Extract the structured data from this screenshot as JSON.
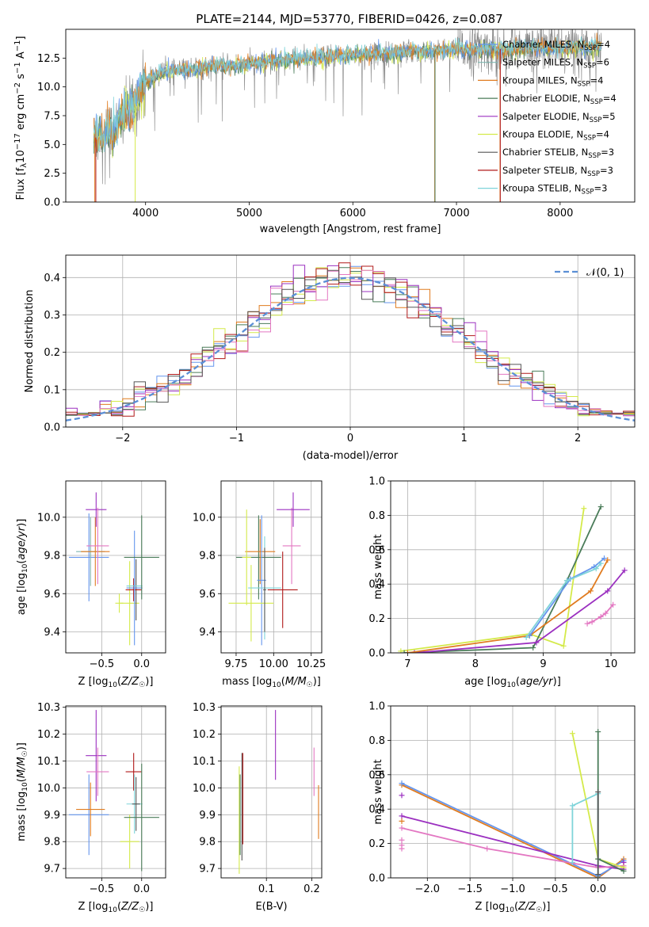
{
  "page": {
    "title": "PLATE=2144, MJD=53770, FIBERID=0426, z=0.087"
  },
  "colors": {
    "Chabrier MILES": "#6495ed",
    "Salpeter MILES": "#7fb6b0",
    "Kroupa MILES": "#e07b1f",
    "Chabrier ELODIE": "#4a7c59",
    "Salpeter ELODIE": "#9b30c0",
    "Kroupa ELODIE": "#d4ea4a",
    "Chabrier STELIB": "#555555",
    "Salpeter STELIB": "#b01818",
    "Kroupa STELIB": "#7fd4d9",
    "pink": "#e377c2",
    "normal": "#5b8fd6",
    "grid": "#b0b0b0"
  },
  "chart_data": [
    {
      "id": "spectrum",
      "type": "line",
      "xlabel": "wavelength [Angstrom, rest frame]",
      "ylabel": "Flux [f_λ10^-17 erg cm^-2 s^-1 A^-1]",
      "xlim": [
        3230,
        8720
      ],
      "ylim": [
        0,
        15
      ],
      "xticks": [
        4000,
        5000,
        6000,
        7000,
        8000
      ],
      "yticks": [
        0.0,
        2.5,
        5.0,
        7.5,
        10.0,
        12.5
      ],
      "ytick_labels": [
        "0.0",
        "2.5",
        "5.0",
        "7.5",
        "10.0",
        "12.5"
      ],
      "grid": false,
      "legend": "right",
      "legend_entries": [
        {
          "label": "Chabrier MILES, N",
          "sub": "SSP",
          "suffix": "=4",
          "color": "#6495ed"
        },
        {
          "label": "Salpeter MILES, N",
          "sub": "SSP",
          "suffix": "=6",
          "color": "#7fb6b0"
        },
        {
          "label": "Kroupa MILES, N",
          "sub": "SSP",
          "suffix": "=4",
          "color": "#e07b1f"
        },
        {
          "label": "Chabrier ELODIE, N",
          "sub": "SSP",
          "suffix": "=4",
          "color": "#4a7c59"
        },
        {
          "label": "Salpeter ELODIE, N",
          "sub": "SSP",
          "suffix": "=5",
          "color": "#9b30c0"
        },
        {
          "label": "Kroupa ELODIE, N",
          "sub": "SSP",
          "suffix": "=4",
          "color": "#d4ea4a"
        },
        {
          "label": "Chabrier STELIB, N",
          "sub": "SSP",
          "suffix": "=3",
          "color": "#555555"
        },
        {
          "label": "Salpeter STELIB, N",
          "sub": "SSP",
          "suffix": "=3",
          "color": "#b01818"
        },
        {
          "label": "Kroupa STELIB, N",
          "sub": "SSP",
          "suffix": "=3",
          "color": "#7fd4d9"
        }
      ],
      "continuum": {
        "x": [
          3500,
          3600,
          3700,
          3800,
          3900,
          4000,
          4100,
          4200,
          4300,
          4500,
          4700,
          5000,
          5300,
          5600,
          6000,
          6500,
          7000,
          7500,
          8000,
          8400
        ],
        "y": [
          5.5,
          6.0,
          6.5,
          7.5,
          8.5,
          10.5,
          11.0,
          11.3,
          11.4,
          11.6,
          11.8,
          12.0,
          12.3,
          12.5,
          12.8,
          13.0,
          13.2,
          13.3,
          13.4,
          13.5
        ]
      },
      "drops": [
        {
          "x": 3510,
          "color": "#e07b1f"
        },
        {
          "x": 3520,
          "color": "#b01818"
        },
        {
          "x": 3900,
          "color": "#d4ea4a"
        },
        {
          "x": 6790,
          "color": "#e07b1f"
        },
        {
          "x": 6793,
          "color": "#4a7c59"
        },
        {
          "x": 7420,
          "color": "#e07b1f"
        },
        {
          "x": 7423,
          "color": "#b01818"
        }
      ]
    },
    {
      "id": "residuals",
      "type": "line",
      "xlabel": "(data-model)/error",
      "ylabel": "Normed distribution",
      "xlim": [
        -2.5,
        2.5
      ],
      "ylim": [
        0,
        0.46
      ],
      "xticks": [
        -2,
        -1,
        0,
        1,
        2
      ],
      "xtick_labels": [
        "−2",
        "−1",
        "0",
        "1",
        "2"
      ],
      "yticks": [
        0.0,
        0.1,
        0.2,
        0.3,
        0.4
      ],
      "ytick_labels": [
        "0.0",
        "0.1",
        "0.2",
        "0.3",
        "0.4"
      ],
      "grid": true,
      "legend": "top-right",
      "normal_label": "𝒩(0, 1)",
      "bin_width": 0.1
    },
    {
      "id": "age_vs_Z",
      "type": "scatter",
      "xlabel": "Z [log10(Z/Z☉)]",
      "ylabel": "age  [log10(age/yr)]",
      "xlim": [
        -0.95,
        0.3
      ],
      "ylim": [
        9.29,
        10.19
      ],
      "xticks": [
        -0.5,
        0.0
      ],
      "xtick_labels": [
        "−0.5",
        "0.0"
      ],
      "yticks": [
        9.4,
        9.6,
        9.8,
        10.0
      ],
      "ytick_labels": [
        "9.4",
        "9.6",
        "9.8",
        "10.0"
      ],
      "grid": true,
      "points": [
        {
          "x": -0.66,
          "y": 9.79,
          "xerr": 0.25,
          "yerr": 0.23,
          "color": "#6495ed"
        },
        {
          "x": -0.64,
          "y": 9.82,
          "xerr": 0.18,
          "yerr": 0.18,
          "color": "#7fb6b0"
        },
        {
          "x": -0.58,
          "y": 9.82,
          "xerr": 0.18,
          "yerr": 0.18,
          "color": "#e07b1f"
        },
        {
          "x": -0.57,
          "y": 10.04,
          "xerr": 0.13,
          "yerr": 0.09,
          "color": "#9b30c0"
        },
        {
          "x": -0.55,
          "y": 9.85,
          "xerr": 0.14,
          "yerr": 0.2,
          "color": "#e377c2"
        },
        {
          "x": -0.15,
          "y": 9.55,
          "xerr": 0.12,
          "yerr": 0.22,
          "color": "#d4ea4a"
        },
        {
          "x": -0.28,
          "y": 9.55,
          "xerr": 0.05,
          "yerr": 0.05,
          "color": "#d4ea4a"
        },
        {
          "x": -0.07,
          "y": 9.62,
          "xerr": 0.05,
          "yerr": 0.16,
          "color": "#555555"
        },
        {
          "x": -0.1,
          "y": 9.62,
          "xerr": 0.1,
          "yerr": 0.06,
          "color": "#b01818"
        },
        {
          "x": -0.09,
          "y": 9.64,
          "xerr": 0.1,
          "yerr": 0.03,
          "color": "#7fd4d9"
        },
        {
          "x": -0.09,
          "y": 9.63,
          "xerr": 0.1,
          "yerr": 0.3,
          "color": "#6495ed"
        },
        {
          "x": 0.0,
          "y": 9.79,
          "xerr": 0.22,
          "yerr": 0.22,
          "color": "#4a7c59"
        }
      ]
    },
    {
      "id": "age_vs_mass",
      "type": "scatter",
      "xlabel": "mass [log10(M/M☉)]",
      "ylabel": "",
      "xlim": [
        9.65,
        10.32
      ],
      "ylim": [
        9.29,
        10.19
      ],
      "xticks": [
        9.75,
        10.0,
        10.25
      ],
      "xtick_labels": [
        "9.75",
        "10.00",
        "10.25"
      ],
      "yticks": [
        9.4,
        9.6,
        9.8,
        10.0
      ],
      "ytick_labels": [
        "9.4",
        "9.6",
        "9.8",
        "10.0"
      ],
      "grid": true,
      "points": [
        {
          "x": 9.9,
          "y": 9.79,
          "xerr": 0.15,
          "yerr": 0.22,
          "color": "#4a7c59"
        },
        {
          "x": 9.91,
          "y": 9.82,
          "xerr": 0.1,
          "yerr": 0.17,
          "color": "#e07b1f"
        },
        {
          "x": 9.92,
          "y": 9.67,
          "xerr": 0.03,
          "yerr": 0.34,
          "color": "#6495ed"
        },
        {
          "x": 9.82,
          "y": 9.79,
          "xerr": 0.03,
          "yerr": 0.25,
          "color": "#d4ea4a"
        },
        {
          "x": 9.85,
          "y": 9.55,
          "xerr": 0.15,
          "yerr": 0.2,
          "color": "#d4ea4a"
        },
        {
          "x": 9.94,
          "y": 9.63,
          "xerr": 0.11,
          "yerr": 0.27,
          "color": "#7fd4d9"
        },
        {
          "x": 9.94,
          "y": 9.62,
          "xerr": 0.01,
          "yerr": 0.22,
          "color": "#555555"
        },
        {
          "x": 10.06,
          "y": 9.62,
          "xerr": 0.1,
          "yerr": 0.2,
          "color": "#b01818"
        },
        {
          "x": 10.12,
          "y": 9.85,
          "xerr": 0.06,
          "yerr": 0.2,
          "color": "#e377c2"
        },
        {
          "x": 10.13,
          "y": 10.04,
          "xerr": 0.11,
          "yerr": 0.09,
          "color": "#9b30c0"
        }
      ]
    },
    {
      "id": "weight_vs_age",
      "type": "line",
      "xlabel": "age  [log10(age/yr)]",
      "ylabel": "mass weight",
      "xlim": [
        6.75,
        10.35
      ],
      "ylim": [
        0,
        1
      ],
      "xticks": [
        7,
        8,
        9,
        10
      ],
      "xtick_labels": [
        "7",
        "8",
        "9",
        "10"
      ],
      "yticks": [
        0.0,
        0.2,
        0.4,
        0.6,
        0.8,
        1.0
      ],
      "ytick_labels": [
        "0.0",
        "0.2",
        "0.4",
        "0.6",
        "0.8",
        "1.0"
      ],
      "grid": true,
      "series": [
        {
          "color": "#d4ea4a",
          "x": [
            6.9,
            8.8,
            9.3,
            9.6
          ],
          "y": [
            0.01,
            0.11,
            0.04,
            0.84
          ]
        },
        {
          "color": "#4a7c59",
          "x": [
            6.95,
            8.85,
            9.35,
            9.85
          ],
          "y": [
            0.0,
            0.03,
            0.42,
            0.85
          ]
        },
        {
          "color": "#9b30c0",
          "x": [
            7.1,
            8.9,
            9.95,
            10.2
          ],
          "y": [
            0.0,
            0.06,
            0.36,
            0.48
          ]
        },
        {
          "color": "#e07b1f",
          "x": [
            7.0,
            8.8,
            9.7,
            9.95
          ],
          "y": [
            0.0,
            0.1,
            0.36,
            0.54
          ]
        },
        {
          "color": "#6495ed",
          "x": [
            8.8,
            9.4,
            9.75,
            9.9
          ],
          "y": [
            0.1,
            0.43,
            0.5,
            0.55
          ]
        },
        {
          "color": "#7fd4d9",
          "x": [
            8.75,
            9.35,
            9.78,
            9.85
          ],
          "y": [
            0.09,
            0.42,
            0.49,
            0.52
          ]
        },
        {
          "color": "#e377c2",
          "x": [
            9.65,
            9.72,
            9.85,
            9.92,
            10.03
          ],
          "y": [
            0.17,
            0.18,
            0.21,
            0.23,
            0.28
          ]
        }
      ]
    },
    {
      "id": "mass_vs_Z",
      "type": "scatter",
      "xlabel": "Z [log10(Z/Z☉)]",
      "ylabel": "mass [log10(M/M☉)]",
      "xlim": [
        -0.95,
        0.3
      ],
      "ylim": [
        9.665,
        10.305
      ],
      "xticks": [
        -0.5,
        0.0
      ],
      "xtick_labels": [
        "−0.5",
        "0.0"
      ],
      "yticks": [
        9.7,
        9.8,
        9.9,
        10.0,
        10.1,
        10.2,
        10.3
      ],
      "ytick_labels": [
        "9.7",
        "9.8",
        "9.9",
        "10.0",
        "10.1",
        "10.2",
        "10.3"
      ],
      "grid": true,
      "points": [
        {
          "x": -0.66,
          "y": 9.9,
          "xerr": 0.25,
          "yerr": 0.15,
          "color": "#6495ed"
        },
        {
          "x": -0.64,
          "y": 9.92,
          "xerr": 0.18,
          "yerr": 0.1,
          "color": "#e07b1f"
        },
        {
          "x": -0.57,
          "y": 10.12,
          "xerr": 0.13,
          "yerr": 0.17,
          "color": "#9b30c0"
        },
        {
          "x": -0.55,
          "y": 10.06,
          "xerr": 0.14,
          "yerr": 0.09,
          "color": "#e377c2"
        },
        {
          "x": -0.15,
          "y": 9.8,
          "xerr": 0.12,
          "yerr": 0.1,
          "color": "#d4ea4a"
        },
        {
          "x": -0.1,
          "y": 10.06,
          "xerr": 0.1,
          "yerr": 0.07,
          "color": "#b01818"
        },
        {
          "x": -0.09,
          "y": 9.94,
          "xerr": 0.1,
          "yerr": 0.11,
          "color": "#7fd4d9"
        },
        {
          "x": -0.07,
          "y": 9.94,
          "xerr": 0.05,
          "yerr": 0.1,
          "color": "#555555"
        },
        {
          "x": 0.0,
          "y": 9.89,
          "xerr": 0.22,
          "yerr": 0.2,
          "color": "#4a7c59"
        }
      ]
    },
    {
      "id": "mass_vs_ebv",
      "type": "scatter",
      "xlabel": "E(B-V)",
      "ylabel": "",
      "xlim": [
        0.0,
        0.222
      ],
      "ylim": [
        9.665,
        10.305
      ],
      "xticks": [
        0.1,
        0.2
      ],
      "xtick_labels": [
        "0.1",
        "0.2"
      ],
      "yticks": [
        9.7,
        9.8,
        9.9,
        10.0,
        10.1,
        10.2,
        10.3
      ],
      "ytick_labels": [
        "9.7",
        "9.8",
        "9.9",
        "10.0",
        "10.1",
        "10.2",
        "10.3"
      ],
      "grid": true,
      "points": [
        {
          "x": 0.04,
          "y": 9.88,
          "xerr": 0.0,
          "yerr": 0.2,
          "color": "#d4ea4a"
        },
        {
          "x": 0.042,
          "y": 9.9,
          "xerr": 0.0,
          "yerr": 0.15,
          "color": "#4a7c59"
        },
        {
          "x": 0.046,
          "y": 9.93,
          "xerr": 0.0,
          "yerr": 0.2,
          "color": "#555555"
        },
        {
          "x": 0.048,
          "y": 9.96,
          "xerr": 0.0,
          "yerr": 0.17,
          "color": "#b01818"
        },
        {
          "x": 0.12,
          "y": 10.16,
          "xerr": 0.0,
          "yerr": 0.13,
          "color": "#9b30c0"
        },
        {
          "x": 0.205,
          "y": 10.06,
          "xerr": 0.0,
          "yerr": 0.09,
          "color": "#e377c2"
        },
        {
          "x": 0.215,
          "y": 9.91,
          "xerr": 0.0,
          "yerr": 0.1,
          "color": "#e07b1f"
        }
      ]
    },
    {
      "id": "weight_vs_Z",
      "type": "line",
      "xlabel": "Z [log10(Z/Z☉)]",
      "ylabel": "mass weight",
      "xlim": [
        -2.43,
        0.43
      ],
      "ylim": [
        0,
        1
      ],
      "xticks": [
        -2.0,
        -1.5,
        -1.0,
        -0.5,
        0.0
      ],
      "xtick_labels": [
        "−2.0",
        "−1.5",
        "−1.0",
        "−0.5",
        "0.0"
      ],
      "yticks": [
        0.0,
        0.2,
        0.4,
        0.6,
        0.8,
        1.0
      ],
      "ytick_labels": [
        "0.0",
        "0.2",
        "0.4",
        "0.6",
        "0.8",
        "1.0"
      ],
      "grid": true,
      "series": [
        {
          "color": "#e07b1f",
          "x": [
            -2.3,
            0.0,
            0.3
          ],
          "y": [
            0.54,
            0.0,
            0.11
          ]
        },
        {
          "color": "#6495ed",
          "x": [
            -2.3,
            0.0,
            0.3
          ],
          "y": [
            0.55,
            0.01,
            0.1
          ]
        },
        {
          "color": "#9b30c0",
          "x": [
            -2.3,
            0.0,
            0.3,
            0.3
          ],
          "y": [
            0.36,
            0.07,
            0.05,
            0.09
          ]
        },
        {
          "color": "#e377c2",
          "x": [
            -2.3,
            -1.3,
            0.0,
            0.3
          ],
          "y": [
            0.29,
            0.17,
            0.06,
            0.07
          ]
        },
        {
          "color": "#d4ea4a",
          "x": [
            -0.3,
            0.0,
            0.3
          ],
          "y": [
            0.84,
            0.11,
            0.06
          ]
        },
        {
          "color": "#4a7c59",
          "x": [
            0.0,
            0.0,
            0.3
          ],
          "y": [
            0.85,
            0.11,
            0.04
          ]
        },
        {
          "color": "#7fd4d9",
          "x": [
            -0.3,
            -0.3,
            0.0,
            0.0
          ],
          "y": [
            0.09,
            0.42,
            0.49,
            0.0
          ]
        },
        {
          "color": "#555555",
          "x": [
            0.0,
            0.0
          ],
          "y": [
            0.5,
            0.02
          ]
        }
      ],
      "markers_only": [
        {
          "color": "#9b30c0",
          "x": -2.3,
          "y": 0.48
        },
        {
          "color": "#e377c2",
          "x": -2.3,
          "y": 0.17
        },
        {
          "color": "#e377c2",
          "x": -2.3,
          "y": 0.19
        },
        {
          "color": "#e377c2",
          "x": -2.3,
          "y": 0.22
        },
        {
          "color": "#e07b1f",
          "x": -2.3,
          "y": 0.33
        }
      ]
    }
  ]
}
